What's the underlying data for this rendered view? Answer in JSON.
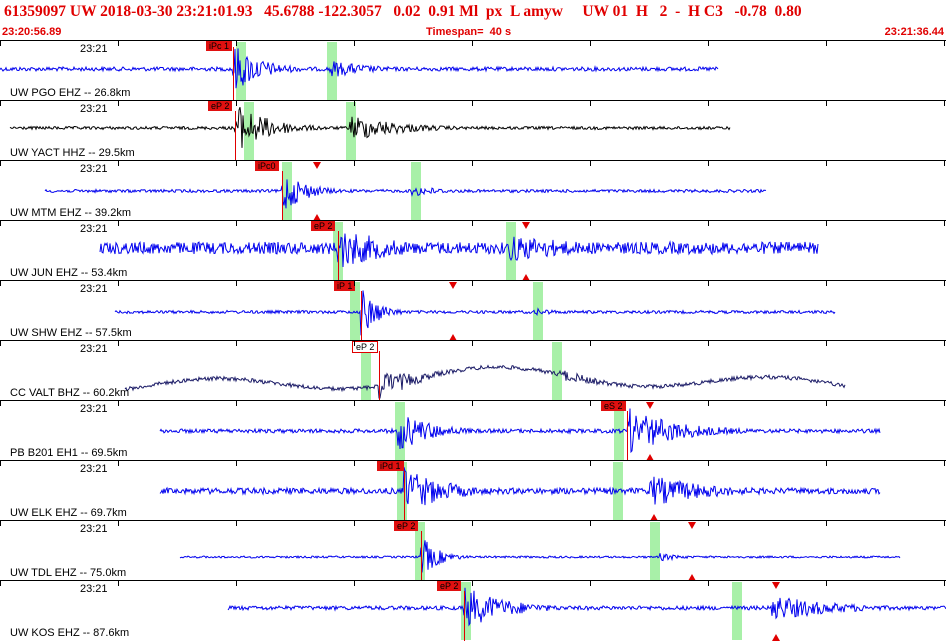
{
  "header": {
    "title": "61359097 UW 2018-03-30 23:21:01.93   45.6788 -122.3057   0.02  0.91 Ml  px  L amyw     UW 01  H   2  -  H C3   -0.78  0.80",
    "start_time": "23:20:56.89",
    "timespan": "Timespan=  40 s",
    "end_time": "23:21:36.44"
  },
  "colors": {
    "header_text": "#e00000",
    "pick": "#e01010",
    "window": "#a8f0a8",
    "trace_blue": "#0000ee",
    "trace_black": "#000000",
    "trace_navy": "#1a1a66"
  },
  "traces": [
    {
      "time_label": "23:21",
      "station": "UW PGO EHZ -- 26.8km",
      "pick": "iPc 1",
      "pick_style": "filled",
      "color": "trace_blue"
    },
    {
      "time_label": "23:21",
      "station": "UW YACT HHZ -- 29.5km",
      "pick": "eP 2",
      "pick_style": "filled",
      "color": "trace_black"
    },
    {
      "time_label": "23:21",
      "station": "UW MTM EHZ -- 39.2km",
      "pick": "iPc0",
      "pick_style": "filled",
      "color": "trace_blue"
    },
    {
      "time_label": "23:21",
      "station": "UW JUN EHZ -- 53.4km",
      "pick": "eP 2",
      "pick_style": "filled",
      "color": "trace_blue"
    },
    {
      "time_label": "23:21",
      "station": "UW SHW EHZ -- 57.5km",
      "pick": "iP 1",
      "pick_style": "filled",
      "color": "trace_blue"
    },
    {
      "time_label": "23:21",
      "station": "CC VALT BHZ -- 60.2km",
      "pick": "eP 2",
      "pick_style": "hollow",
      "color": "trace_navy"
    },
    {
      "time_label": "23:21",
      "station": "PB B201 EH1 -- 69.5km",
      "pick": "eS 2",
      "pick_style": "filled",
      "color": "trace_blue"
    },
    {
      "time_label": "23:21",
      "station": "UW ELK EHZ -- 69.7km",
      "pick": "iPd 1",
      "pick_style": "filled",
      "color": "trace_blue"
    },
    {
      "time_label": "23:21",
      "station": "UW TDL EHZ -- 75.0km",
      "pick": "eP 2",
      "pick_style": "filled",
      "color": "trace_blue"
    },
    {
      "time_label": "23:21",
      "station": "UW KOS EHZ -- 87.6km",
      "pick": "eP 2",
      "pick_style": "filled",
      "color": "trace_blue"
    }
  ]
}
